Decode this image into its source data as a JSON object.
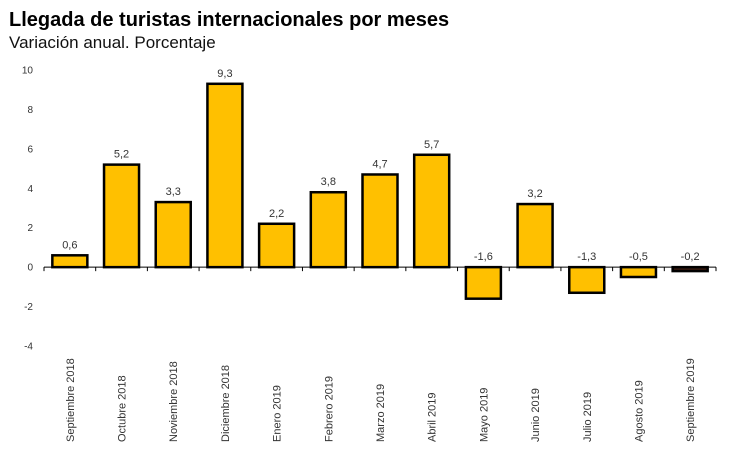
{
  "chart_data": {
    "type": "bar",
    "title": "Llegada de turistas internacionales por meses",
    "subtitle": "Variación anual. Porcentaje",
    "xlabel": "",
    "ylabel": "",
    "ylim": [
      -4,
      10
    ],
    "yticks": [
      10,
      8,
      6,
      4,
      2,
      0,
      -2,
      -4
    ],
    "grid": false,
    "bar_color": "#FFC000",
    "bar_edge_color": "#000000",
    "last_bar_color": "#3a1a10",
    "categories": [
      "Septiembre 2018",
      "Octubre 2018",
      "Noviembre 2018",
      "Diciembre 2018",
      "Enero 2019",
      "Febrero 2019",
      "Marzo 2019",
      "Abril 2019",
      "Mayo 2019",
      "Junio 2019",
      "Julio 2019",
      "Agosto 2019",
      "Septiembre 2019"
    ],
    "values": [
      0.6,
      5.2,
      3.3,
      9.3,
      2.2,
      3.8,
      4.7,
      5.7,
      -1.6,
      3.2,
      -1.3,
      -0.5,
      -0.2
    ],
    "value_labels": [
      "0,6",
      "5,2",
      "3,3",
      "9,3",
      "2,2",
      "3,8",
      "4,7",
      "5,7",
      "-1,6",
      "3,2",
      "-1,3",
      "-0,5",
      "-0,2"
    ]
  }
}
